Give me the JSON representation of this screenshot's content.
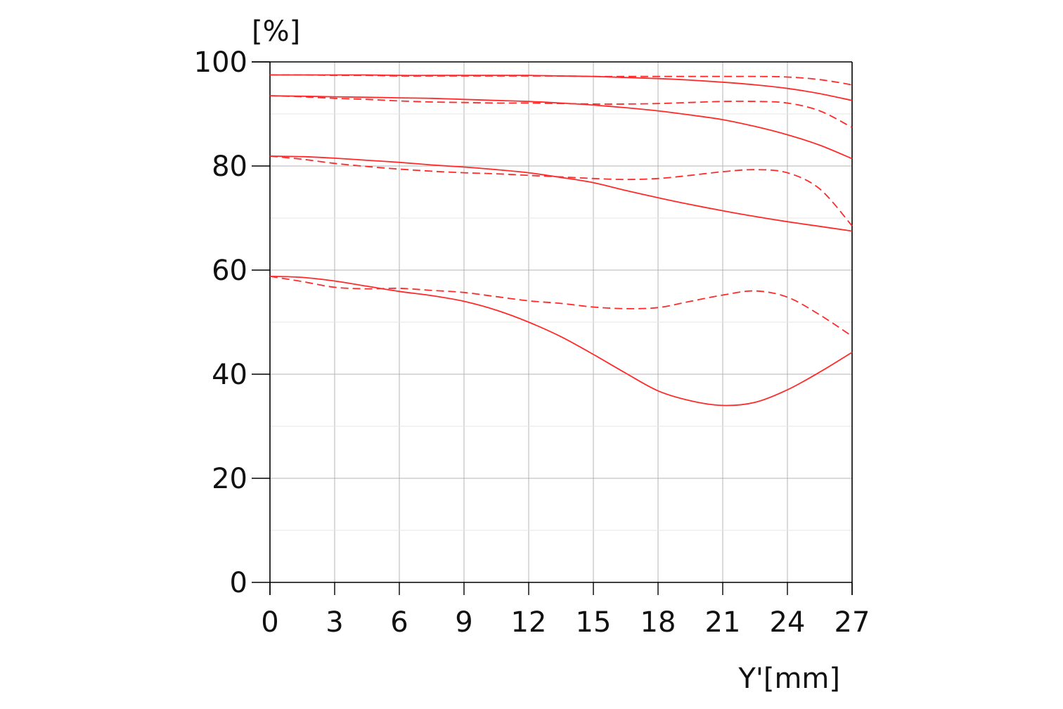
{
  "chart_data": {
    "type": "line",
    "ylabel": "[%]",
    "xlabel": "Y'[mm]",
    "xlim": [
      0,
      27
    ],
    "ylim": [
      0,
      100
    ],
    "x_ticks": [
      0,
      3,
      6,
      9,
      12,
      15,
      18,
      21,
      24,
      27
    ],
    "y_ticks": [
      0,
      20,
      40,
      60,
      80,
      100
    ],
    "x_tick_labels": [
      "0",
      "3",
      "6",
      "9",
      "12",
      "15",
      "18",
      "21",
      "24",
      "27"
    ],
    "y_tick_labels": [
      "0",
      "20",
      "40",
      "60",
      "80",
      "100"
    ],
    "grid": true,
    "line_color": "#ff2a2a",
    "grid_color": "#b3b3b3",
    "x": [
      0,
      1.5,
      3,
      4.5,
      6,
      7.5,
      9,
      10.5,
      12,
      13.5,
      15,
      16.5,
      18,
      19.5,
      21,
      22.5,
      24,
      25.5,
      27
    ],
    "series": [
      {
        "style": "solid",
        "values": [
          97.5,
          97.5,
          97.5,
          97.5,
          97.4,
          97.4,
          97.4,
          97.4,
          97.4,
          97.3,
          97.2,
          97.0,
          96.8,
          96.5,
          96.1,
          95.6,
          94.9,
          93.9,
          92.6
        ]
      },
      {
        "style": "dashed",
        "values": [
          97.5,
          97.5,
          97.4,
          97.4,
          97.3,
          97.3,
          97.3,
          97.3,
          97.3,
          97.3,
          97.2,
          97.2,
          97.2,
          97.2,
          97.2,
          97.2,
          97.1,
          96.6,
          95.6
        ]
      },
      {
        "style": "solid",
        "values": [
          93.5,
          93.4,
          93.3,
          93.2,
          93.1,
          93.0,
          92.8,
          92.6,
          92.4,
          92.1,
          91.7,
          91.2,
          90.6,
          89.8,
          88.9,
          87.6,
          86.0,
          84.0,
          81.4
        ]
      },
      {
        "style": "dashed",
        "values": [
          93.5,
          93.3,
          93.0,
          92.8,
          92.5,
          92.3,
          92.2,
          92.1,
          92.1,
          92.0,
          91.9,
          91.9,
          92.0,
          92.2,
          92.4,
          92.4,
          92.1,
          90.6,
          87.4
        ]
      },
      {
        "style": "solid",
        "values": [
          81.9,
          81.8,
          81.5,
          81.1,
          80.7,
          80.2,
          79.8,
          79.3,
          78.7,
          77.8,
          76.8,
          75.3,
          73.9,
          72.6,
          71.4,
          70.3,
          69.3,
          68.4,
          67.5
        ]
      },
      {
        "style": "dashed",
        "values": [
          81.9,
          81.3,
          80.5,
          79.9,
          79.4,
          79.0,
          78.7,
          78.5,
          78.2,
          77.9,
          77.6,
          77.4,
          77.6,
          78.2,
          78.9,
          79.3,
          78.7,
          75.6,
          68.5
        ]
      },
      {
        "style": "solid",
        "values": [
          58.8,
          58.6,
          57.9,
          56.9,
          55.9,
          55.1,
          54.0,
          52.3,
          50.0,
          47.2,
          43.8,
          40.2,
          36.8,
          34.9,
          34.0,
          34.6,
          37.0,
          40.4,
          44.2
        ]
      },
      {
        "style": "dashed",
        "values": [
          58.8,
          57.8,
          56.7,
          56.4,
          56.5,
          56.1,
          55.7,
          54.9,
          54.1,
          53.6,
          52.9,
          52.6,
          52.8,
          54.0,
          55.2,
          56.0,
          54.8,
          51.4,
          47.3
        ]
      }
    ]
  }
}
